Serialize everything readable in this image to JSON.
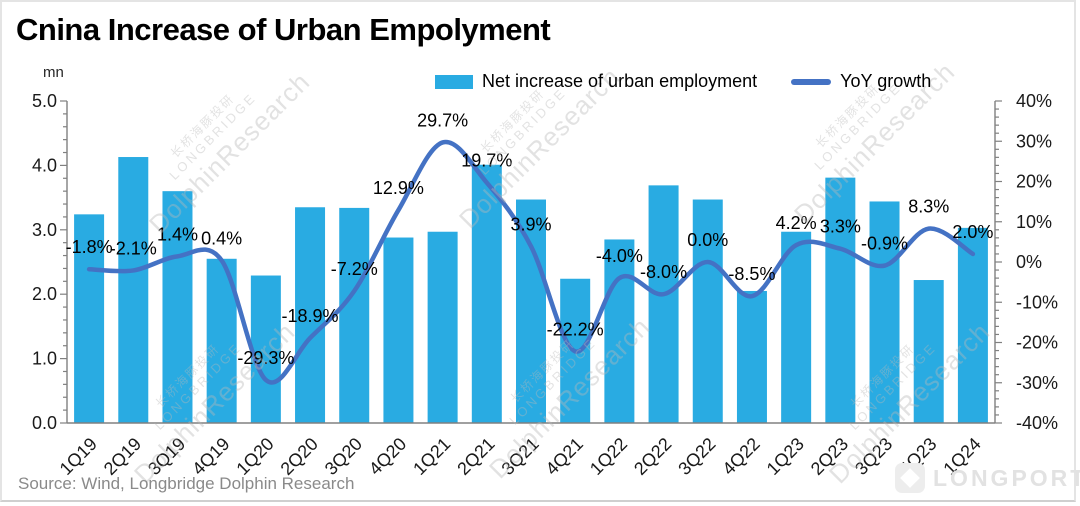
{
  "title": "Cnina Increase of Urban Empolyment",
  "source": "Source: Wind, Longbridge Dolphin Research",
  "watermark": {
    "cjk": "长桥海豚投研",
    "brand": "LONGBRIDGE",
    "research": "DolphinResearch",
    "logo_text": "LONGPORT"
  },
  "legend": [
    {
      "label": "Net increase of urban employment",
      "type": "bar",
      "color": "#29ABE2"
    },
    {
      "label": "YoY growth",
      "type": "line",
      "color": "#4472C4"
    }
  ],
  "chart_data": {
    "type": "bar",
    "subtype": "bar+line combo, dual axis",
    "categories": [
      "1Q19",
      "2Q19",
      "3Q19",
      "4Q19",
      "1Q20",
      "2Q20",
      "3Q20",
      "4Q20",
      "1Q21",
      "2Q21",
      "3Q21",
      "4Q21",
      "1Q22",
      "2Q22",
      "3Q22",
      "4Q22",
      "1Q23",
      "2Q23",
      "3Q23",
      "4Q23",
      "1Q24"
    ],
    "series": [
      {
        "name": "Net increase of urban employment",
        "type": "bar",
        "axis": "left",
        "unit": "mn",
        "color": "#29ABE2",
        "values": [
          3.24,
          4.13,
          3.6,
          2.55,
          2.29,
          3.35,
          3.34,
          2.88,
          2.97,
          4.01,
          3.47,
          2.24,
          2.85,
          3.69,
          3.47,
          2.05,
          2.97,
          3.81,
          3.44,
          2.22,
          3.03
        ]
      },
      {
        "name": "YoY growth",
        "type": "line",
        "axis": "right",
        "unit": "%",
        "color": "#4472C4",
        "smooth": true,
        "values": [
          -1.8,
          -2.1,
          1.4,
          0.4,
          -29.3,
          -18.9,
          -7.2,
          12.9,
          29.7,
          19.7,
          3.9,
          -22.2,
          -4.0,
          -8.0,
          0.0,
          -8.5,
          4.2,
          3.3,
          -0.9,
          8.3,
          2.0
        ],
        "labels": [
          "-1.8%",
          "-2.1%",
          "1.4%",
          "0.4%",
          "-29.3%",
          "-18.9%",
          "-7.2%",
          "12.9%",
          "29.7%",
          "19.7%",
          "3.9%",
          "-22.2%",
          "-4.0%",
          "-8.0%",
          "0.0%",
          "-8.5%",
          "4.2%",
          "3.3%",
          "-0.9%",
          "8.3%",
          "2.0%"
        ]
      }
    ],
    "left_axis": {
      "unit": "mn",
      "min": 0,
      "max": 5,
      "major_step": 1,
      "minor_step": 0.2,
      "ticks": [
        "5.0",
        "4.0",
        "3.0",
        "2.0",
        "1.0",
        "0.0"
      ]
    },
    "right_axis": {
      "unit": "%",
      "min": -40,
      "max": 40,
      "major_step": 10,
      "minor_step": 2,
      "ticks": [
        "40%",
        "30%",
        "20%",
        "10%",
        "0%",
        "-10%",
        "-20%",
        "-30%",
        "-40%"
      ]
    },
    "grid": false,
    "legend_position": "top",
    "x_label_rotation": -45
  }
}
